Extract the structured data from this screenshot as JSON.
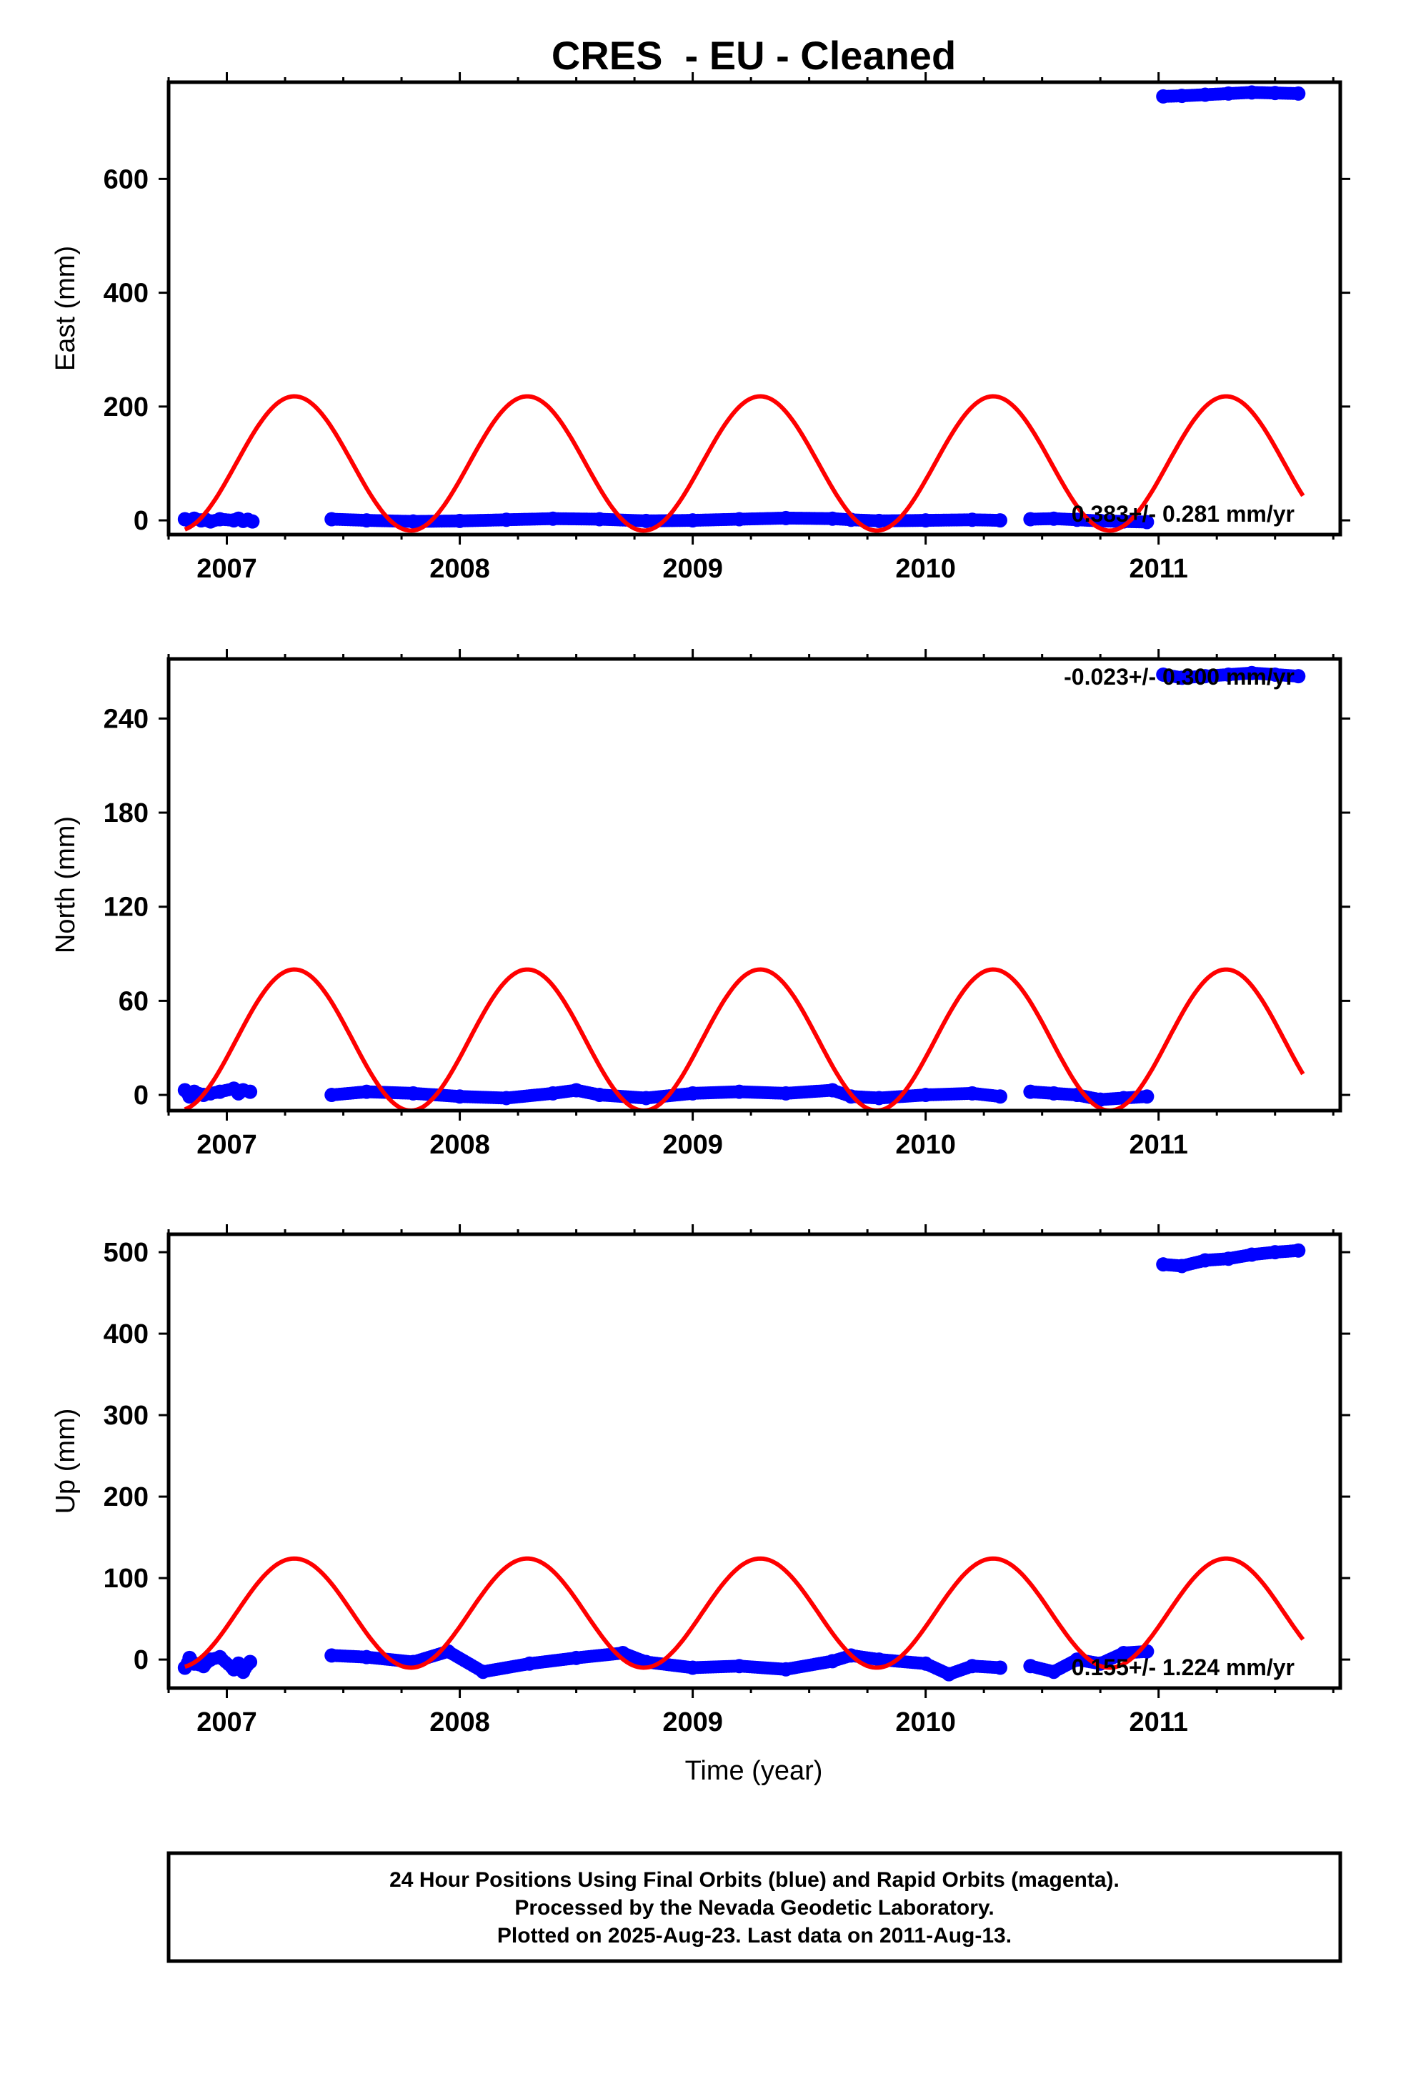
{
  "chart_data": {
    "type": "scatter",
    "title": "CRES  - EU - Cleaned",
    "xlabel": "Time (year)",
    "x_ticks": [
      "2007",
      "2008",
      "2009",
      "2010",
      "2011"
    ],
    "xlim": [
      2006.75,
      2011.78
    ],
    "colors": {
      "data": "#0000ff",
      "model": "#ff0000",
      "frame": "#000000"
    },
    "panels": [
      {
        "ylabel": "East (mm)",
        "ylim": [
          -25,
          770
        ],
        "y_ticks": [
          0,
          200,
          400,
          600
        ],
        "rate": "0.383+/- 0.281 mm/yr",
        "model_curve": {
          "mean": 100,
          "amplitude": 118,
          "peak_year": 2007.29
        },
        "series": [
          {
            "x": [
              2006.82,
              2006.84,
              2006.86,
              2006.89,
              2006.91,
              2006.93,
              2006.97,
              2007.03,
              2007.05,
              2007.07,
              2007.09,
              2007.11
            ],
            "y": [
              2,
              -1,
              3,
              0,
              1,
              -2,
              2,
              0,
              3,
              -1,
              1,
              -2
            ]
          },
          {
            "x": [
              2007.45,
              2007.6,
              2007.8,
              2008.0,
              2008.2,
              2008.4,
              2008.6,
              2008.8,
              2009.0,
              2009.2,
              2009.4,
              2009.6,
              2009.68,
              2009.8,
              2010.0,
              2010.2,
              2010.32
            ],
            "y": [
              2,
              0,
              -2,
              -1,
              1,
              3,
              2,
              -1,
              0,
              2,
              4,
              3,
              1,
              -1,
              0,
              1,
              0
            ]
          },
          {
            "x": [
              2010.45,
              2010.55,
              2010.65,
              2010.75,
              2010.85,
              2010.95
            ],
            "y": [
              2,
              3,
              1,
              -1,
              -2,
              -3
            ]
          },
          {
            "x": [
              2011.02,
              2011.1,
              2011.2,
              2011.3,
              2011.4,
              2011.5,
              2011.6
            ],
            "y": [
              745,
              746,
              748,
              750,
              752,
              751,
              750
            ]
          }
        ]
      },
      {
        "ylabel": "North (mm)",
        "ylim": [
          -10,
          278
        ],
        "y_ticks": [
          0,
          60,
          120,
          180,
          240
        ],
        "rate": "-0.023+/- 0.300 mm/yr",
        "model_curve": {
          "mean": 35,
          "amplitude": 45,
          "peak_year": 2007.29
        },
        "series": [
          {
            "x": [
              2006.82,
              2006.84,
              2006.86,
              2006.9,
              2006.93,
              2006.97,
              2007.03,
              2007.05,
              2007.07,
              2007.1
            ],
            "y": [
              3,
              -1,
              2,
              0,
              1,
              2,
              4,
              1,
              3,
              2
            ]
          },
          {
            "x": [
              2007.45,
              2007.6,
              2007.8,
              2008.0,
              2008.2,
              2008.4,
              2008.5,
              2008.6,
              2008.8,
              2009.0,
              2009.2,
              2009.4,
              2009.6,
              2009.68,
              2009.8,
              2010.0,
              2010.2,
              2010.32
            ],
            "y": [
              0,
              2,
              1,
              -1,
              -2,
              1,
              3,
              0,
              -2,
              1,
              2,
              1,
              3,
              -1,
              -2,
              0,
              1,
              -1
            ]
          },
          {
            "x": [
              2010.45,
              2010.55,
              2010.65,
              2010.75,
              2010.85,
              2010.95
            ],
            "y": [
              2,
              1,
              0,
              -3,
              -2,
              -1
            ]
          },
          {
            "x": [
              2011.02,
              2011.1,
              2011.2,
              2011.3,
              2011.4,
              2011.5,
              2011.6
            ],
            "y": [
              268,
              266,
              267,
              268,
              269,
              268,
              267
            ]
          }
        ]
      },
      {
        "ylabel": "Up (mm)",
        "ylim": [
          -35,
          522
        ],
        "y_ticks": [
          0,
          100,
          200,
          300,
          400,
          500
        ],
        "rate": "0.155+/- 1.224 mm/yr",
        "model_curve": {
          "mean": 57,
          "amplitude": 67,
          "peak_year": 2007.29
        },
        "series": [
          {
            "x": [
              2006.82,
              2006.84,
              2006.86,
              2006.9,
              2006.93,
              2006.97,
              2007.03,
              2007.05,
              2007.07,
              2007.1
            ],
            "y": [
              -10,
              2,
              -5,
              -8,
              0,
              3,
              -12,
              -5,
              -15,
              -3
            ]
          },
          {
            "x": [
              2007.45,
              2007.6,
              2007.8,
              2007.95,
              2008.1,
              2008.3,
              2008.5,
              2008.7,
              2008.8,
              2009.0,
              2009.2,
              2009.4,
              2009.6,
              2009.68,
              2009.8,
              2010.0,
              2010.1,
              2010.2,
              2010.32
            ],
            "y": [
              5,
              3,
              -3,
              10,
              -15,
              -5,
              2,
              8,
              -3,
              -10,
              -8,
              -12,
              -2,
              5,
              0,
              -5,
              -18,
              -8,
              -10
            ]
          },
          {
            "x": [
              2010.45,
              2010.55,
              2010.65,
              2010.75,
              2010.85,
              2010.95
            ],
            "y": [
              -8,
              -15,
              0,
              -5,
              8,
              10
            ]
          },
          {
            "x": [
              2011.02,
              2011.1,
              2011.2,
              2011.3,
              2011.4,
              2011.5,
              2011.6
            ],
            "y": [
              485,
              483,
              490,
              492,
              497,
              500,
              502
            ]
          }
        ]
      }
    ]
  },
  "footer": {
    "line1": "24 Hour Positions Using Final Orbits (blue) and Rapid Orbits (magenta).",
    "line2": "Processed by the Nevada Geodetic Laboratory.",
    "line3": "Plotted on 2025-Aug-23. Last data on 2011-Aug-13."
  }
}
